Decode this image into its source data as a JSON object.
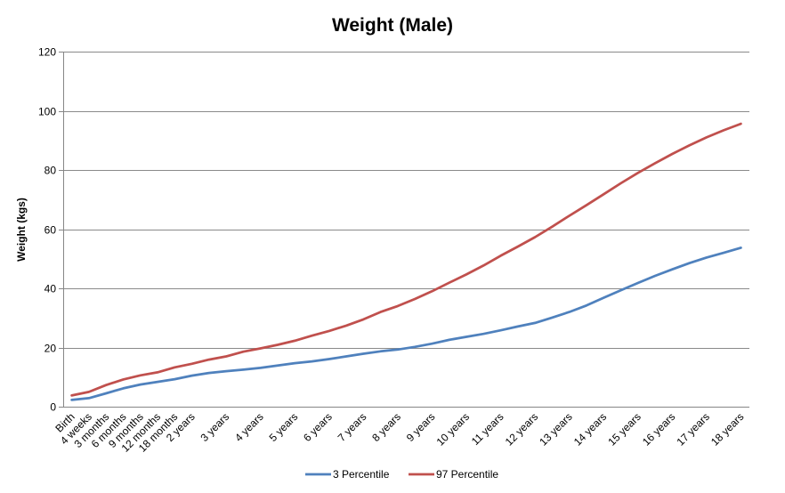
{
  "chart_data": {
    "type": "line",
    "title": "Weight (Male)",
    "ylabel": "Weight (kgs)",
    "ylim": [
      0,
      120
    ],
    "yticks": [
      0,
      20,
      40,
      60,
      80,
      100,
      120
    ],
    "grid": true,
    "legend": "bottom",
    "categories": [
      "Birth",
      "4 weeks",
      "3 months",
      "6 months",
      "9 months",
      "12 months",
      "18 months",
      "2 years",
      "",
      "3 years",
      "",
      "4 years",
      "",
      "5 years",
      "",
      "6 years",
      "",
      "7 years",
      "",
      "8 years",
      "",
      "9 years",
      "",
      "10 years",
      "",
      "11 years",
      "",
      "12 years",
      "",
      "13 years",
      "",
      "14 years",
      "",
      "15 years",
      "",
      "16 years",
      "",
      "17 years",
      "",
      "18 years"
    ],
    "series": [
      {
        "name": "3 Percentile",
        "color": "#4F81BD",
        "values": [
          2.3,
          2.9,
          4.5,
          6.2,
          7.5,
          8.4,
          9.3,
          10.5,
          11.4,
          12.0,
          12.5,
          13.1,
          13.9,
          14.7,
          15.3,
          16.1,
          17.0,
          17.9,
          18.7,
          19.3,
          20.2,
          21.3,
          22.6,
          23.6,
          24.6,
          25.8,
          27.1,
          28.3,
          30.1,
          32.0,
          34.2,
          36.8,
          39.3,
          41.8,
          44.2,
          46.4,
          48.5,
          50.4,
          52.0,
          53.7
        ]
      },
      {
        "name": "97 Percentile",
        "color": "#C0504D",
        "values": [
          3.8,
          5.0,
          7.3,
          9.2,
          10.6,
          11.6,
          13.3,
          14.5,
          15.9,
          17.0,
          18.6,
          19.7,
          20.9,
          22.3,
          24.0,
          25.6,
          27.4,
          29.5,
          32.0,
          34.0,
          36.4,
          39.0,
          41.9,
          44.7,
          47.7,
          51.0,
          54.1,
          57.3,
          60.8,
          64.5,
          68.1,
          71.8,
          75.5,
          79.0,
          82.3,
          85.4,
          88.3,
          91.0,
          93.4,
          95.6
        ]
      }
    ]
  }
}
